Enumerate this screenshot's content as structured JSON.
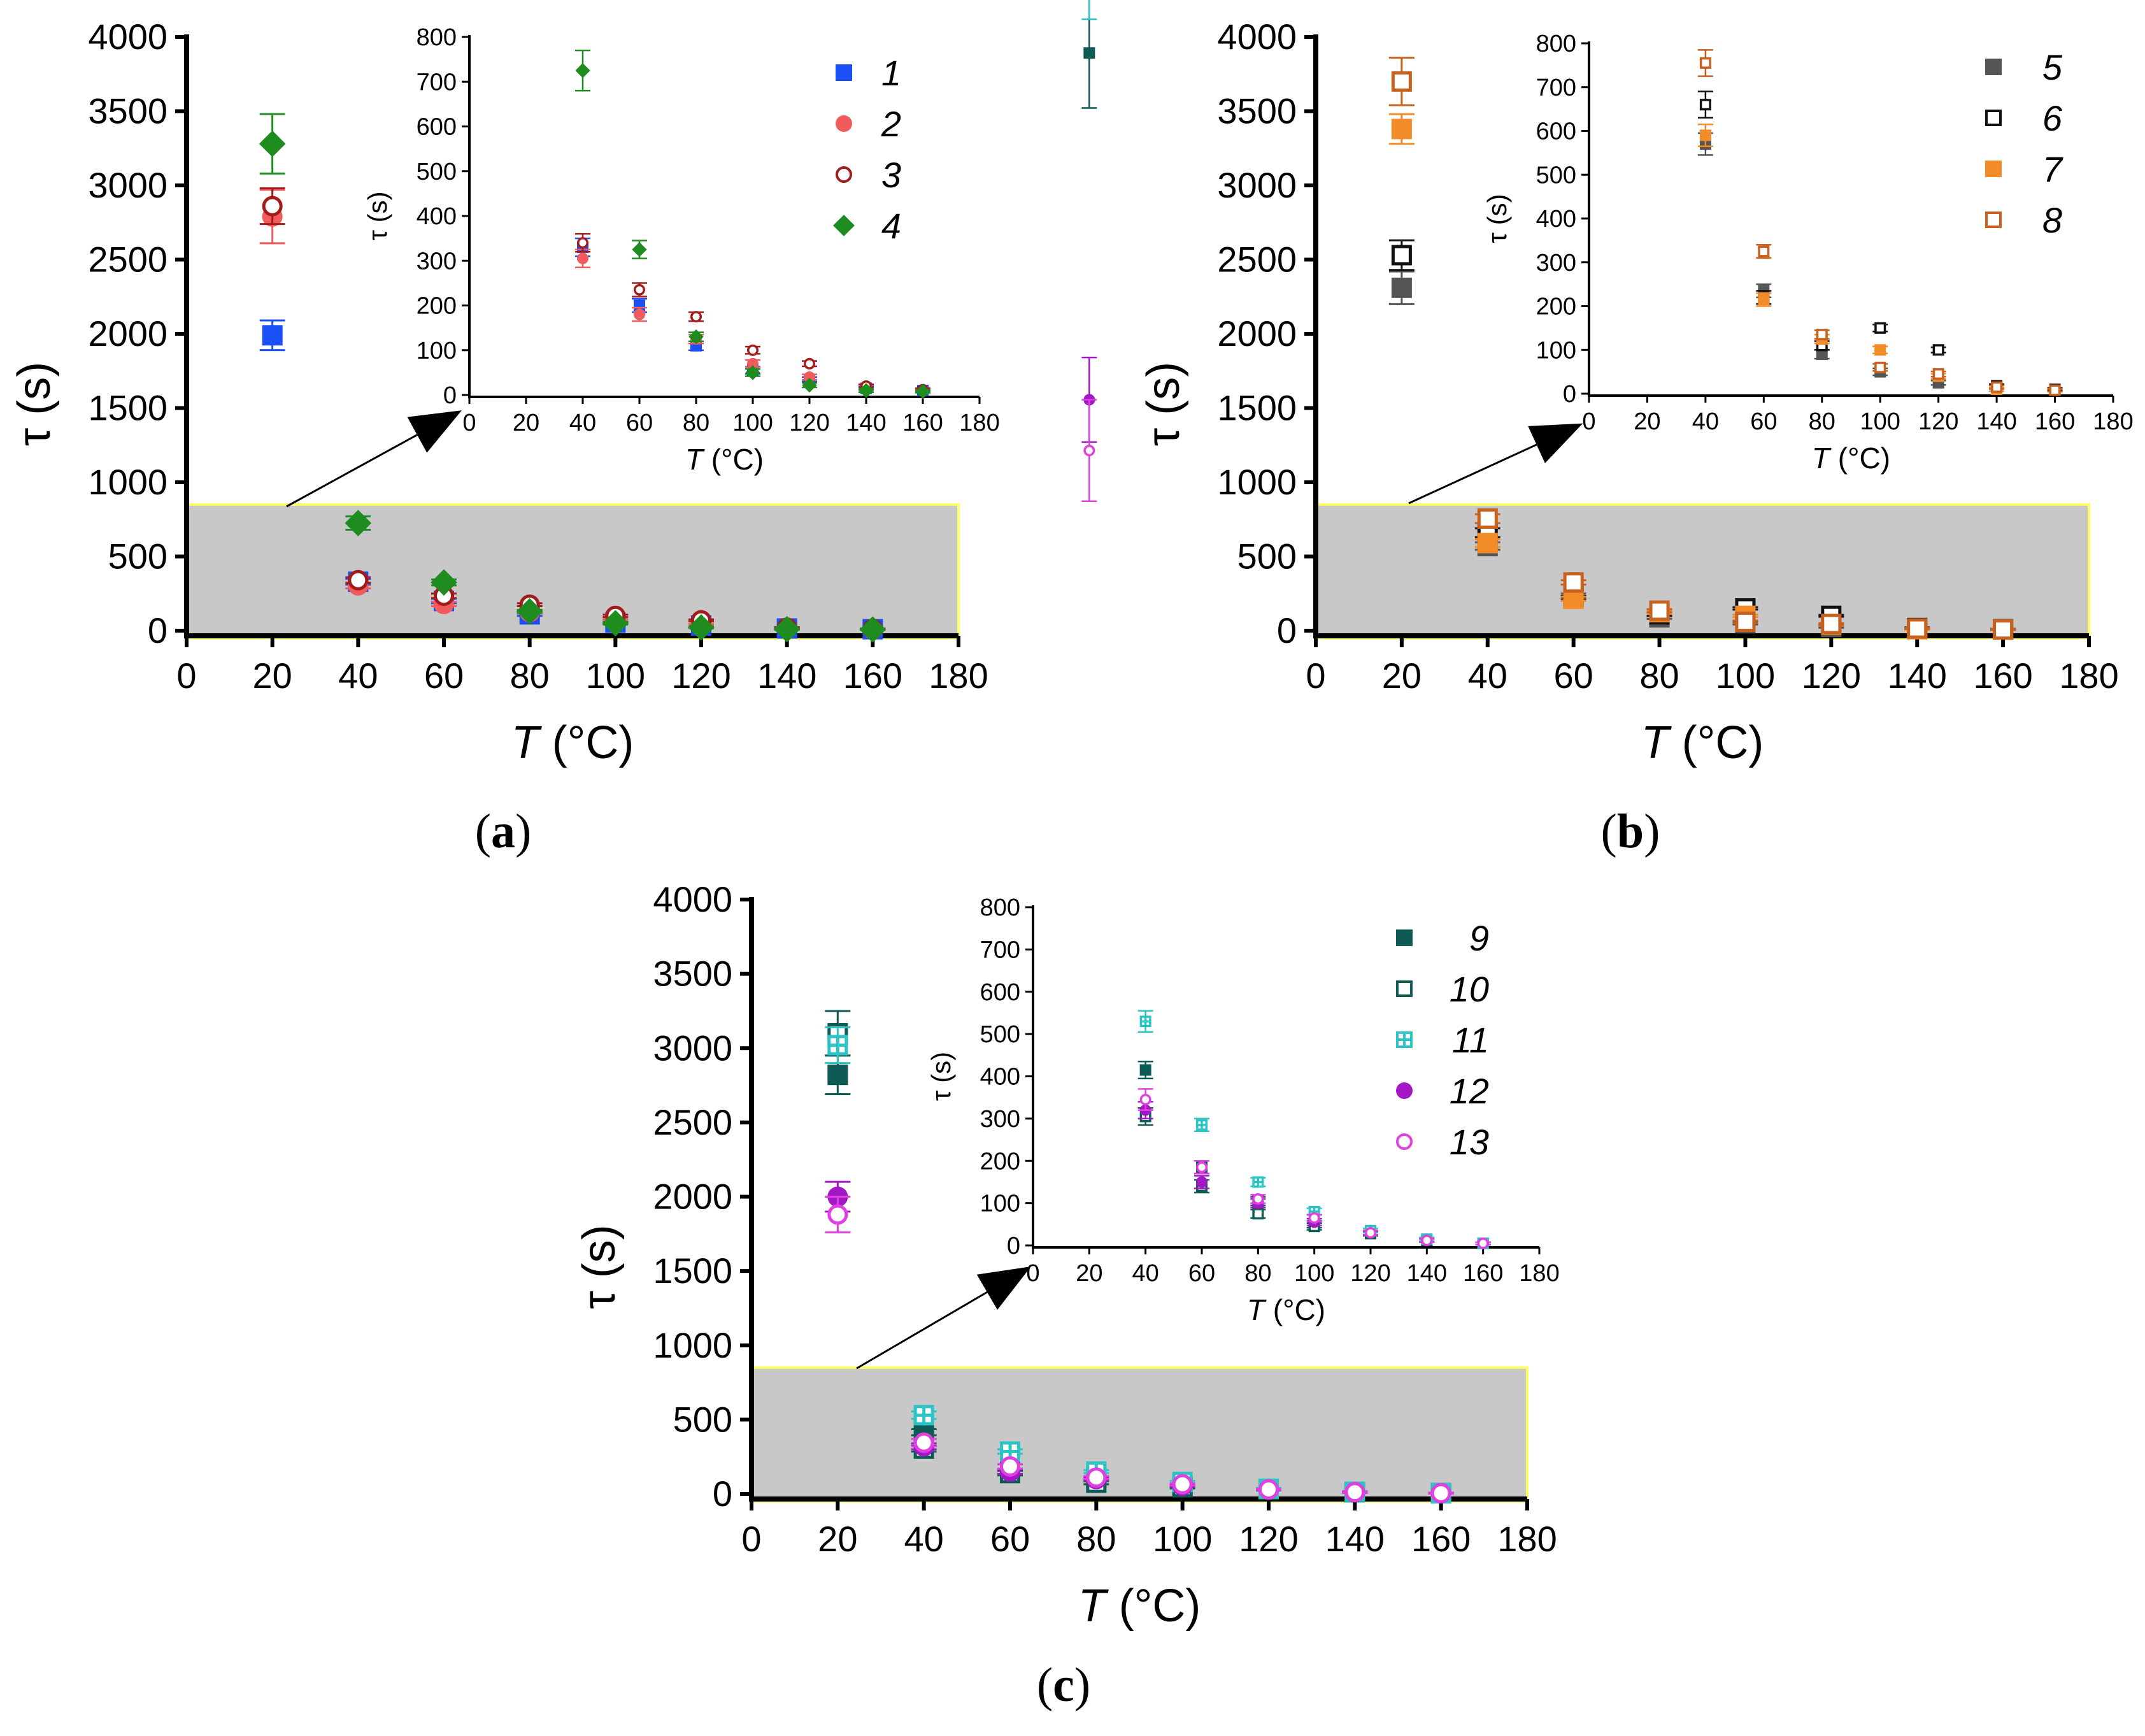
{
  "figure": {
    "panel_labels": [
      "(a)",
      "(b)",
      "(c)"
    ]
  },
  "chart_data": [
    {
      "type": "scatter",
      "panel": "(a)",
      "xlabel_var": "T",
      "xlabel_unit": " (°C)",
      "ylabel": "τ (s)",
      "xlim": [
        0,
        180
      ],
      "ylim": [
        0,
        4000
      ],
      "xticks": [
        0,
        20,
        40,
        60,
        80,
        100,
        120,
        140,
        160,
        180
      ],
      "yticks": [
        0,
        500,
        1000,
        1500,
        2000,
        2500,
        3000,
        3500,
        4000
      ],
      "highlight_region": {
        "y_range": [
          -50,
          850
        ],
        "fill": "#c8c8c8",
        "border": "#ffff66"
      },
      "series": [
        {
          "name": "1",
          "marker": "square-filled",
          "color": "#1a4ff5",
          "x": [
            20,
            40,
            60,
            80,
            100,
            120,
            140,
            160
          ],
          "y": [
            1990,
            330,
            200,
            110,
            55,
            35,
            15,
            10
          ],
          "err": [
            100,
            20,
            15,
            10,
            8,
            5,
            4,
            3
          ]
        },
        {
          "name": "2",
          "marker": "circle-filled",
          "color": "#f25b5b",
          "x": [
            20,
            40,
            60,
            80,
            100,
            120,
            140,
            160
          ],
          "y": [
            2790,
            305,
            180,
            125,
            70,
            40,
            18,
            10
          ],
          "err": [
            180,
            20,
            15,
            10,
            8,
            6,
            4,
            3
          ]
        },
        {
          "name": "3",
          "marker": "circle-open",
          "color": "#a31c1c",
          "x": [
            20,
            40,
            60,
            80,
            100,
            120,
            140,
            160
          ],
          "y": [
            2860,
            340,
            235,
            175,
            100,
            70,
            20,
            12
          ],
          "err": [
            120,
            20,
            15,
            10,
            8,
            6,
            4,
            3
          ]
        },
        {
          "name": "4",
          "marker": "diamond-filled",
          "color": "#1e8c1e",
          "x": [
            20,
            40,
            60,
            80,
            100,
            120,
            140,
            160
          ],
          "y": [
            3280,
            725,
            325,
            130,
            50,
            22,
            10,
            8
          ],
          "err": [
            200,
            45,
            20,
            10,
            8,
            5,
            4,
            3
          ]
        }
      ],
      "inset": {
        "xlabel_var": "T",
        "xlabel_unit": " (°C)",
        "ylabel": "τ (s)",
        "xlim": [
          0,
          180
        ],
        "ylim": [
          0,
          800
        ],
        "xticks": [
          0,
          20,
          40,
          60,
          80,
          100,
          120,
          140,
          160,
          180
        ],
        "yticks": [
          0,
          100,
          200,
          300,
          400,
          500,
          600,
          700,
          800
        ]
      }
    },
    {
      "type": "scatter",
      "panel": "(b)",
      "xlabel_var": "T",
      "xlabel_unit": " (°C)",
      "ylabel": "τ (s)",
      "xlim": [
        0,
        180
      ],
      "ylim": [
        0,
        4000
      ],
      "xticks": [
        0,
        20,
        40,
        60,
        80,
        100,
        120,
        140,
        160,
        180
      ],
      "yticks": [
        0,
        500,
        1000,
        1500,
        2000,
        2500,
        3000,
        3500,
        4000
      ],
      "highlight_region": {
        "y_range": [
          -50,
          850
        ],
        "fill": "#c8c8c8",
        "border": "#ffff66"
      },
      "series": [
        {
          "name": "5",
          "marker": "square-filled",
          "color": "#555555",
          "x": [
            20,
            40,
            60,
            80,
            100,
            120,
            140,
            160
          ],
          "y": [
            2310,
            570,
            235,
            90,
            50,
            25,
            15,
            8
          ],
          "err": [
            110,
            25,
            15,
            10,
            8,
            5,
            4,
            3
          ]
        },
        {
          "name": "6",
          "marker": "square-open",
          "color": "#111111",
          "x": [
            20,
            40,
            60,
            80,
            100,
            120,
            140,
            160
          ],
          "y": [
            2530,
            660,
            220,
            110,
            150,
            100,
            18,
            10
          ],
          "err": [
            100,
            30,
            15,
            10,
            8,
            6,
            4,
            3
          ]
        },
        {
          "name": "7",
          "marker": "square-filled",
          "color": "#f28c28",
          "x": [
            20,
            40,
            60,
            80,
            100,
            120,
            140,
            160
          ],
          "y": [
            3380,
            590,
            215,
            125,
            100,
            40,
            10,
            8
          ],
          "err": [
            100,
            25,
            15,
            10,
            8,
            6,
            4,
            3
          ]
        },
        {
          "name": "8",
          "marker": "square-open",
          "color": "#c8601e",
          "x": [
            20,
            40,
            60,
            80,
            100,
            120,
            140,
            160
          ],
          "y": [
            3700,
            755,
            325,
            135,
            60,
            45,
            15,
            8
          ],
          "err": [
            160,
            30,
            15,
            10,
            8,
            6,
            4,
            3
          ]
        }
      ],
      "inset": {
        "xlabel_var": "T",
        "xlabel_unit": " (°C)",
        "ylabel": "τ (s)",
        "xlim": [
          0,
          180
        ],
        "ylim": [
          0,
          800
        ],
        "xticks": [
          0,
          20,
          40,
          60,
          80,
          100,
          120,
          140,
          160,
          180
        ],
        "yticks": [
          0,
          100,
          200,
          300,
          400,
          500,
          600,
          700,
          800
        ]
      }
    },
    {
      "type": "scatter",
      "panel": "(c)",
      "xlabel_var": "T",
      "xlabel_unit": " (°C)",
      "ylabel": "τ (s)",
      "xlim": [
        0,
        180
      ],
      "ylim": [
        0,
        4000
      ],
      "xticks": [
        0,
        20,
        40,
        60,
        80,
        100,
        120,
        140,
        160,
        180
      ],
      "yticks": [
        0,
        500,
        1000,
        1500,
        2000,
        2500,
        3000,
        3500,
        4000
      ],
      "highlight_region": {
        "y_range": [
          -50,
          850
        ],
        "fill": "#c8c8c8",
        "border": "#ffff66"
      },
      "series": [
        {
          "name": "9",
          "marker": "square-filled",
          "color": "#0e5a55",
          "x": [
            20,
            40,
            60,
            80,
            100,
            120,
            140,
            160
          ],
          "y": [
            2820,
            415,
            185,
            105,
            50,
            30,
            12,
            5
          ],
          "err": [
            130,
            20,
            15,
            10,
            8,
            5,
            4,
            3
          ]
        },
        {
          "name": "10",
          "marker": "square-open",
          "color": "#0e5a55",
          "x": [
            20,
            40,
            60,
            80,
            100,
            120,
            140,
            160
          ],
          "y": [
            3100,
            305,
            140,
            75,
            45,
            28,
            12,
            5
          ],
          "err": [
            150,
            20,
            15,
            10,
            8,
            5,
            4,
            3
          ]
        },
        {
          "name": "11",
          "marker": "square-cross",
          "color": "#2cc4c4",
          "x": [
            20,
            40,
            60,
            80,
            100,
            120,
            140,
            160
          ],
          "y": [
            3020,
            530,
            285,
            150,
            80,
            35,
            15,
            5
          ],
          "err": [
            120,
            25,
            15,
            10,
            8,
            5,
            4,
            3
          ]
        },
        {
          "name": "12",
          "marker": "circle-filled",
          "color": "#a218c4",
          "x": [
            20,
            40,
            60,
            80,
            100,
            120,
            140,
            160
          ],
          "y": [
            2000,
            320,
            150,
            100,
            55,
            30,
            12,
            5
          ],
          "err": [
            100,
            20,
            15,
            10,
            8,
            5,
            4,
            3
          ]
        },
        {
          "name": "13",
          "marker": "circle-open",
          "color": "#e040e0",
          "x": [
            20,
            40,
            60,
            80,
            100,
            120,
            140,
            160
          ],
          "y": [
            1880,
            345,
            185,
            110,
            65,
            30,
            12,
            5
          ],
          "err": [
            120,
            25,
            15,
            10,
            8,
            5,
            4,
            3
          ]
        }
      ],
      "inset": {
        "xlabel_var": "T",
        "xlabel_unit": " (°C)",
        "ylabel": "τ (s)",
        "xlim": [
          0,
          180
        ],
        "ylim": [
          0,
          800
        ],
        "xticks": [
          0,
          20,
          40,
          60,
          80,
          100,
          120,
          140,
          160,
          180
        ],
        "yticks": [
          0,
          100,
          200,
          300,
          400,
          500,
          600,
          700,
          800
        ]
      }
    }
  ]
}
